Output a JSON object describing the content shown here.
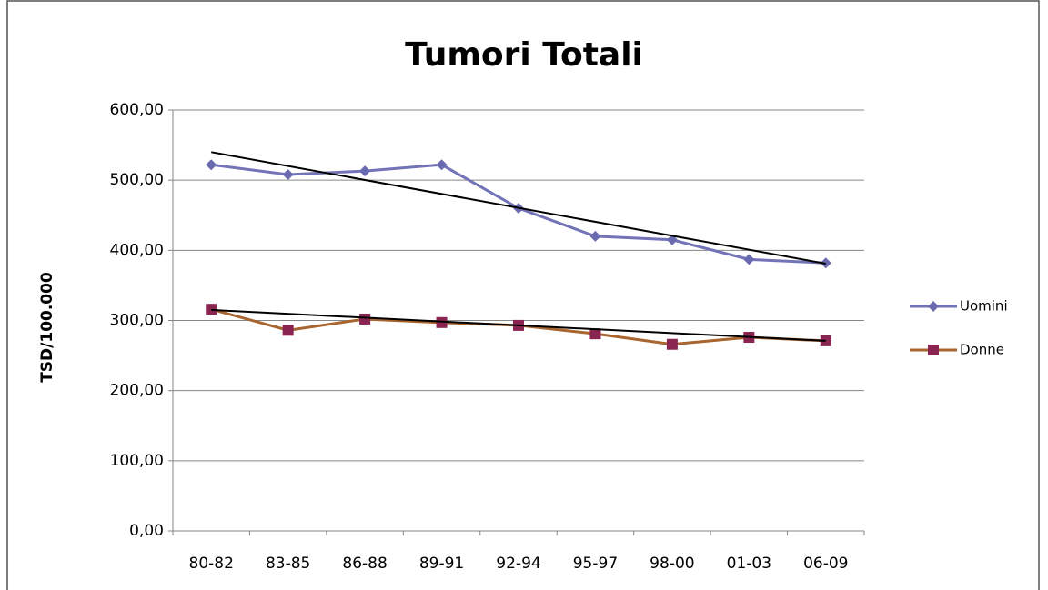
{
  "chart_data": {
    "type": "line",
    "title": "Tumori Totali",
    "y_label": "TSD/100.000",
    "categories": [
      "80-82",
      "83-85",
      "86-88",
      "89-91",
      "92-94",
      "95-97",
      "98-00",
      "01-03",
      "06-09"
    ],
    "series": [
      {
        "name": "Uomini",
        "color": "#7373b8",
        "marker": "diamond",
        "marker_color": "#6a6ab0",
        "values": [
          522,
          508,
          513,
          522,
          460,
          420,
          415,
          387,
          382
        ],
        "trendline": [
          540,
          381
        ]
      },
      {
        "name": "Donne",
        "color": "#a8652f",
        "marker": "square",
        "marker_color": "#8a2450",
        "values": [
          316,
          286,
          302,
          297,
          293,
          281,
          266,
          276,
          271
        ],
        "trendline": [
          315,
          271
        ]
      }
    ],
    "trendline_color": "#000000",
    "ylim": [
      0,
      600
    ],
    "yticks": [
      {
        "value": 0,
        "label": "0,00"
      },
      {
        "value": 100,
        "label": "100,00"
      },
      {
        "value": 200,
        "label": "200,00"
      },
      {
        "value": 300,
        "label": "300,00"
      },
      {
        "value": 400,
        "label": "400,00"
      },
      {
        "value": 500,
        "label": "500,00"
      },
      {
        "value": 600,
        "label": "600,00"
      }
    ],
    "grid": true,
    "legend": "right"
  }
}
